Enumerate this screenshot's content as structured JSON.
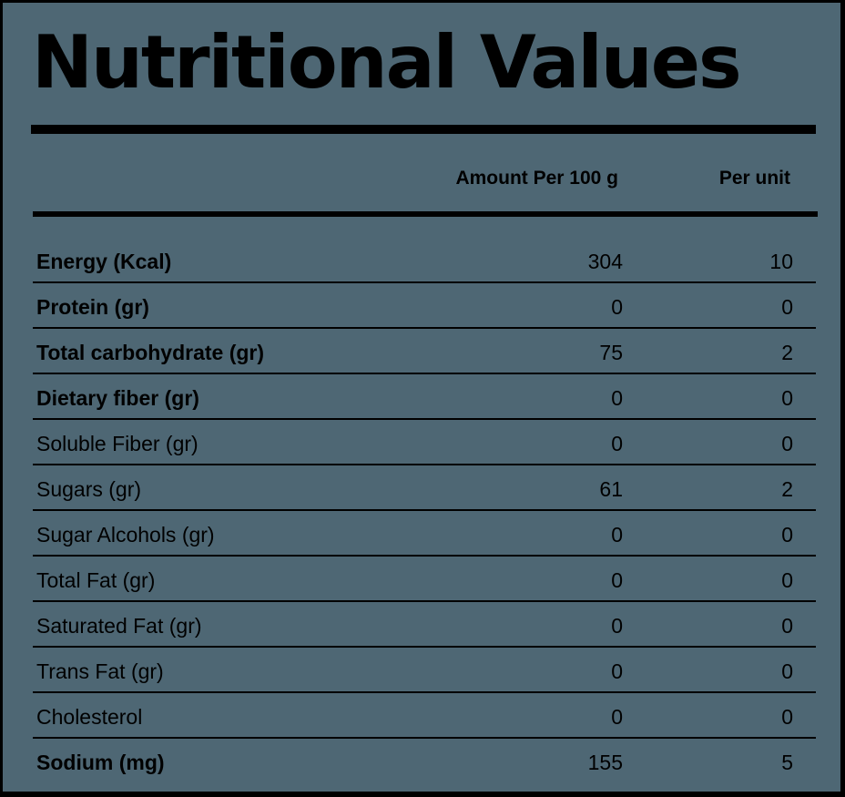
{
  "title": "Nutritional Values",
  "columns": {
    "per_100g": "Amount Per 100 g",
    "per_unit": "Per unit"
  },
  "rows": [
    {
      "label": "Energy (Kcal)",
      "per_100g": "304",
      "per_unit": "10",
      "bold": true
    },
    {
      "label": "Protein (gr)",
      "per_100g": "0",
      "per_unit": "0",
      "bold": true
    },
    {
      "label": "Total carbohydrate (gr)",
      "per_100g": "75",
      "per_unit": "2",
      "bold": true
    },
    {
      "label": "Dietary fiber (gr)",
      "per_100g": "0",
      "per_unit": "0",
      "bold": true
    },
    {
      "label": "Soluble Fiber (gr)",
      "per_100g": "0",
      "per_unit": "0",
      "bold": false
    },
    {
      "label": "Sugars (gr)",
      "per_100g": "61",
      "per_unit": "2",
      "bold": false
    },
    {
      "label": "Sugar Alcohols (gr)",
      "per_100g": "0",
      "per_unit": "0",
      "bold": false
    },
    {
      "label": "Total Fat (gr)",
      "per_100g": "0",
      "per_unit": "0",
      "bold": false
    },
    {
      "label": "Saturated Fat (gr)",
      "per_100g": "0",
      "per_unit": "0",
      "bold": false
    },
    {
      "label": "Trans Fat (gr)",
      "per_100g": "0",
      "per_unit": "0",
      "bold": false
    },
    {
      "label": "Cholesterol",
      "per_100g": "0",
      "per_unit": "0",
      "bold": false
    },
    {
      "label": "Sodium (mg)",
      "per_100g": "155",
      "per_unit": "5",
      "bold": true
    }
  ],
  "colors": {
    "background": "#4e6774",
    "border": "#000000",
    "text": "#000000"
  }
}
